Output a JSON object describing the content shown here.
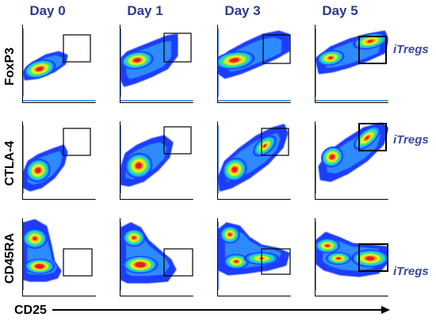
{
  "colors": {
    "header": "#2E3A8C",
    "annotation": "#3A4A9E",
    "frame": "#000000",
    "gate": "#000000",
    "axis_arrow": "#000000"
  },
  "columns": [
    {
      "label": "Day 0"
    },
    {
      "label": "Day 1"
    },
    {
      "label": "Day 3"
    },
    {
      "label": "Day 5"
    }
  ],
  "rows": [
    {
      "label": "FoxP3",
      "annotation": "iTregs"
    },
    {
      "label": "CTLA-4",
      "annotation": "iTregs"
    },
    {
      "label": "CD45RA",
      "annotation": "iTregs"
    }
  ],
  "x_axis": {
    "label": "CD25"
  },
  "plot_style": "flow cytometry pseudocolor density plots (blue-to-red)"
}
